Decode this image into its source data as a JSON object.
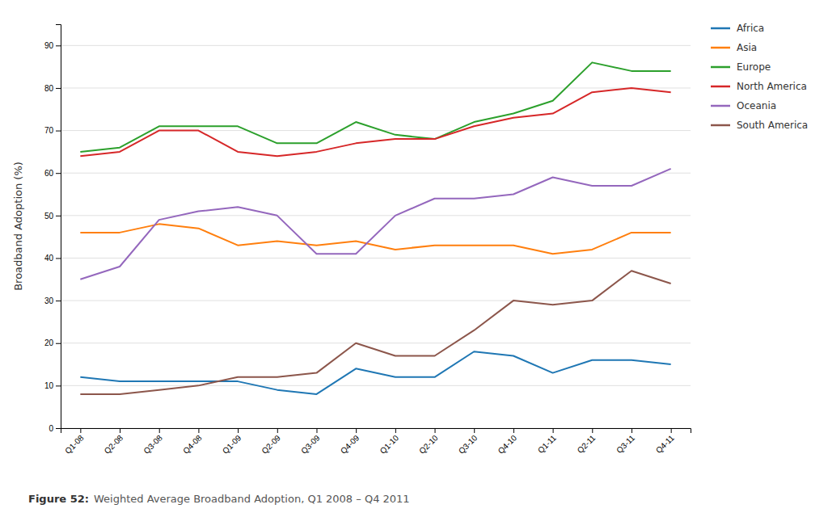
{
  "chart_data": {
    "type": "line",
    "categories": [
      "Q1-08",
      "Q2-08",
      "Q3-08",
      "Q4-08",
      "Q1-09",
      "Q2-09",
      "Q3-09",
      "Q4-09",
      "Q1-10",
      "Q2-10",
      "Q3-10",
      "Q4-10",
      "Q1-11",
      "Q2-11",
      "Q3-11",
      "Q4-11"
    ],
    "series": [
      {
        "name": "Africa",
        "values": [
          12,
          11,
          11,
          11,
          11,
          9,
          8,
          14,
          12,
          12,
          18,
          17,
          13,
          16,
          16,
          15
        ]
      },
      {
        "name": "Asia",
        "values": [
          46,
          46,
          48,
          47,
          43,
          44,
          43,
          44,
          42,
          43,
          43,
          43,
          41,
          42,
          46,
          46
        ]
      },
      {
        "name": "Europe",
        "values": [
          65,
          66,
          71,
          71,
          71,
          67,
          67,
          72,
          69,
          68,
          72,
          74,
          77,
          86,
          84,
          84
        ]
      },
      {
        "name": "North America",
        "values": [
          64,
          65,
          70,
          70,
          65,
          64,
          65,
          67,
          68,
          68,
          71,
          73,
          74,
          79,
          80,
          79
        ]
      },
      {
        "name": "Oceania",
        "values": [
          35,
          38,
          49,
          51,
          52,
          50,
          41,
          41,
          50,
          54,
          54,
          55,
          59,
          57,
          57,
          61
        ]
      },
      {
        "name": "South America",
        "values": [
          8,
          8,
          9,
          10,
          12,
          12,
          13,
          20,
          17,
          17,
          23,
          30,
          29,
          30,
          37,
          34
        ]
      }
    ],
    "y_label": "Broadband Adoption (%)",
    "ylim": [
      0,
      95
    ],
    "yticks": [
      0,
      10,
      20,
      30,
      40,
      50,
      60,
      70,
      80,
      90
    ],
    "grid": true,
    "legend": "right",
    "annotations": [
      {
        "text": "Figure 52:"
      },
      {
        "text": "Weighted Average Broadband Adoption, Q1 2008 – Q4 2011"
      }
    ]
  }
}
